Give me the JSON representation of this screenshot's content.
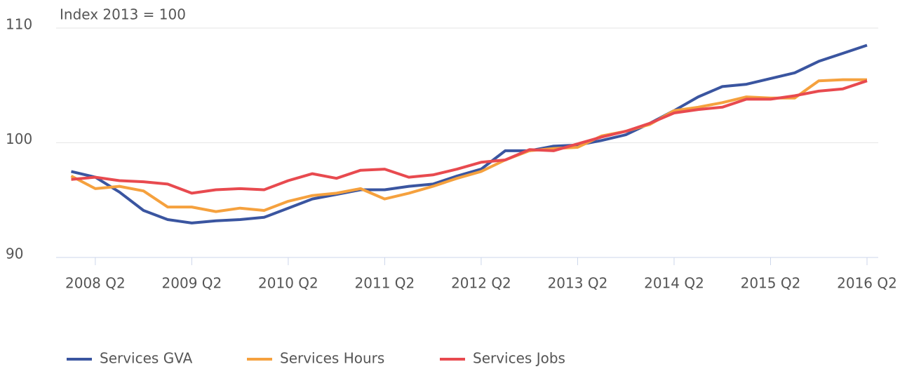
{
  "chart_data": {
    "type": "line",
    "title": "Index 2013 = 100",
    "categories": [
      null,
      "2008 Q2",
      null,
      null,
      null,
      "2009 Q2",
      null,
      null,
      null,
      "2010 Q2",
      null,
      null,
      null,
      "2011 Q2",
      null,
      null,
      null,
      "2012 Q2",
      null,
      null,
      null,
      "2013 Q2",
      null,
      null,
      null,
      "2014 Q2",
      null,
      null,
      null,
      "2015 Q2",
      null,
      null,
      null,
      "2016 Q2"
    ],
    "series": [
      {
        "name": "Services GVA",
        "color": "#3a55a0",
        "values": [
          97.5,
          97.0,
          95.7,
          94.1,
          93.3,
          93.0,
          93.2,
          93.3,
          93.5,
          94.3,
          95.1,
          95.5,
          95.9,
          95.9,
          96.2,
          96.4,
          97.1,
          97.7,
          99.3,
          99.3,
          99.7,
          99.8,
          100.2,
          100.7,
          101.7,
          102.8,
          104.0,
          104.9,
          105.1,
          105.6,
          106.1,
          107.1,
          107.8,
          108.5
        ]
      },
      {
        "name": "Services Hours",
        "color": "#f5a13e",
        "values": [
          97.1,
          96.0,
          96.2,
          95.8,
          94.4,
          94.4,
          94.0,
          94.3,
          94.1,
          94.9,
          95.4,
          95.6,
          96.0,
          95.1,
          95.6,
          96.2,
          96.9,
          97.5,
          98.5,
          99.3,
          99.5,
          99.6,
          100.6,
          101.0,
          101.6,
          102.8,
          103.1,
          103.5,
          104.0,
          103.9,
          103.9,
          105.4,
          105.5,
          105.5
        ]
      },
      {
        "name": "Services Jobs",
        "color": "#e84a4f",
        "values": [
          96.8,
          97.0,
          96.7,
          96.6,
          96.4,
          95.6,
          95.9,
          96.0,
          95.9,
          96.7,
          97.3,
          96.9,
          97.6,
          97.7,
          97.0,
          97.2,
          97.7,
          98.3,
          98.5,
          99.4,
          99.3,
          99.9,
          100.5,
          101.0,
          101.7,
          102.6,
          102.9,
          103.1,
          103.8,
          103.8,
          104.1,
          104.5,
          104.7,
          105.4
        ]
      }
    ],
    "ylim": [
      90,
      110
    ],
    "yticks": [
      90,
      100,
      110
    ],
    "grid": true,
    "legend": "bottom"
  }
}
